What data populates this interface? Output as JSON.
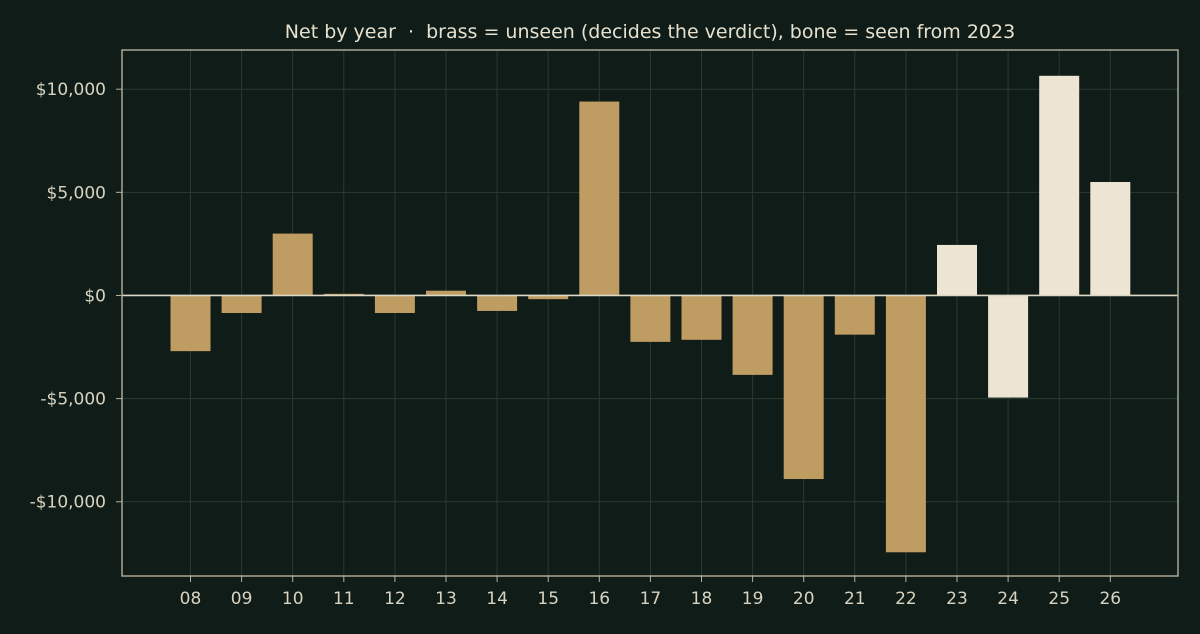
{
  "chart_data": {
    "type": "bar",
    "title": "Net by year  ·  brass = unseen (decides the verdict), bone = seen from 2023",
    "xlabel": "",
    "ylabel": "",
    "categories": [
      "08",
      "09",
      "10",
      "11",
      "12",
      "13",
      "14",
      "15",
      "16",
      "17",
      "18",
      "19",
      "20",
      "21",
      "22",
      "23",
      "24",
      "25",
      "26"
    ],
    "values": [
      -2700,
      -850,
      3000,
      80,
      -850,
      230,
      -750,
      -180,
      9400,
      -2250,
      -2150,
      -3850,
      -8900,
      -1900,
      -12450,
      2450,
      -4950,
      10650,
      5500
    ],
    "series": [
      {
        "categories": [
          "08",
          "09",
          "10",
          "11",
          "12",
          "13",
          "14",
          "15",
          "16",
          "17",
          "18",
          "19",
          "20",
          "21",
          "22"
        ],
        "color": "#bf9c62"
      },
      {
        "categories": [
          "23",
          "24",
          "25",
          "26"
        ],
        "color": "#ede4d3"
      }
    ],
    "ylim": [
      -13600,
      11900
    ],
    "yticks": [
      10000,
      5000,
      0,
      -5000,
      -10000
    ],
    "ytick_labels": [
      "$10,000",
      "$5,000",
      "$0",
      "-$5,000",
      "-$10,000"
    ],
    "grid": true,
    "legend": "none",
    "colors": {
      "background": "#0f1c17",
      "axis": "#b7b29d",
      "grid": "#2b3a33",
      "text": "#d8d3c1",
      "title": "#e6e1cf",
      "zero_line": "#ddd8c6"
    }
  }
}
